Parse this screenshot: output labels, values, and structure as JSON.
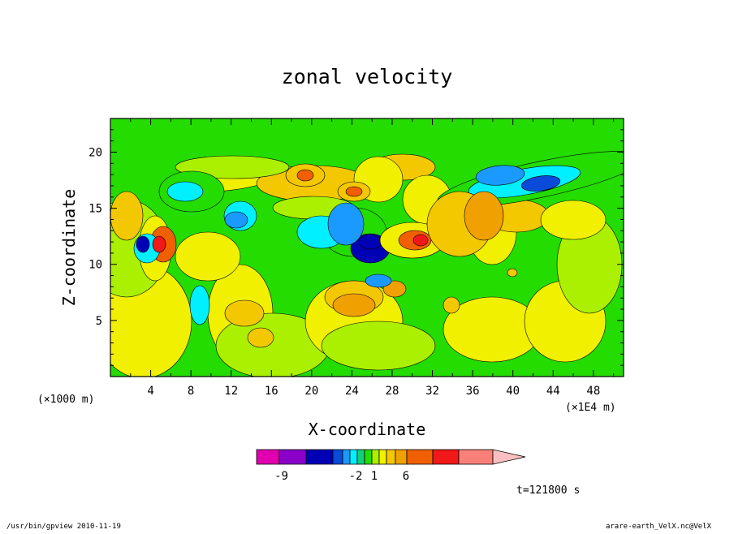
{
  "chart_data": {
    "type": "heatmap",
    "title": "zonal velocity",
    "xlabel": "X-coordinate",
    "ylabel": "Z-coordinate",
    "x_unit_left": "(×1000 m)",
    "x_unit_right": "(×1E4 m)",
    "x_ticks": [
      "4",
      "8",
      "12",
      "16",
      "20",
      "24",
      "28",
      "32",
      "36",
      "40",
      "44",
      "48"
    ],
    "y_ticks": [
      "5",
      "10",
      "15",
      "20"
    ],
    "xlim": [
      0,
      51
    ],
    "ylim": [
      0,
      23
    ],
    "colorbar": {
      "labels": [
        "-9",
        "-2",
        "1",
        "6"
      ],
      "colors": [
        "#e000b0",
        "#8a00c8",
        "#0000b4",
        "#0a4ad8",
        "#1a9aff",
        "#00f0ff",
        "#10d07a",
        "#24dc00",
        "#aaf000",
        "#f0f000",
        "#f4c800",
        "#f0a000",
        "#f06000",
        "#f01818",
        "#f88078",
        "#f8c0c0"
      ]
    },
    "time_label": "t=121800 s",
    "footer_left": "/usr/bin/gpview  2010-11-19",
    "footer_right": "arare-earth_VelX.nc@VelX"
  }
}
